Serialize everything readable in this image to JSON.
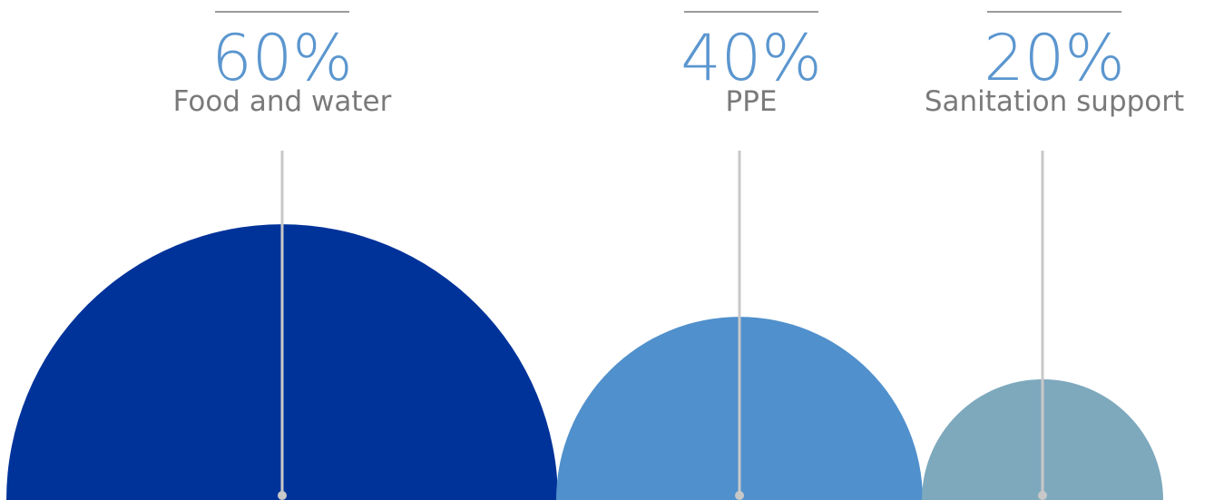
{
  "chart_data": {
    "type": "semicircle-bubble",
    "title": "",
    "categories": [
      "Food and water",
      "PPE",
      "Sanitation support"
    ],
    "values": [
      60,
      40,
      20
    ],
    "value_labels": [
      "60%",
      "40%",
      "20%"
    ],
    "colors": [
      "#00339a",
      "#5090cc",
      "#7ea9bd"
    ],
    "label_color": "#5b96cf",
    "text_color": "#7a7a7a",
    "leader_color": "#c8c8c8"
  }
}
